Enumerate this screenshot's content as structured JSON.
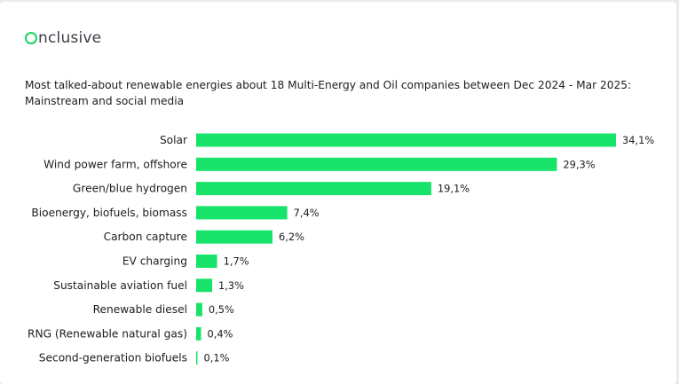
{
  "brand": {
    "logo_text": "nclusive",
    "logo_full": "Onclusive",
    "accent_color": "#18e36a"
  },
  "chart_data": {
    "type": "bar",
    "orientation": "horizontal",
    "title": "Most talked-about renewable energies about 18 Multi-Energy and Oil companies between Dec 2024 - Mar 2025: Mainstream and social media",
    "categories": [
      "Solar",
      "Wind power farm, offshore",
      "Green/blue hydrogen",
      "Bioenergy, biofuels, biomass",
      "Carbon capture",
      "EV charging",
      "Sustainable aviation fuel",
      "Renewable diesel",
      "RNG (Renewable natural gas)",
      "Second-generation biofuels"
    ],
    "values": [
      34.1,
      29.3,
      19.1,
      7.4,
      6.2,
      1.7,
      1.3,
      0.5,
      0.4,
      0.1
    ],
    "value_labels": [
      "34,1%",
      "29,3%",
      "19,1%",
      "7,4%",
      "6,2%",
      "1,7%",
      "1,3%",
      "0,5%",
      "0,4%",
      "0,1%"
    ],
    "unit": "%",
    "xlim": [
      0,
      34.1
    ],
    "grid": false,
    "legend": "none",
    "bar_color": "#18e36a"
  }
}
